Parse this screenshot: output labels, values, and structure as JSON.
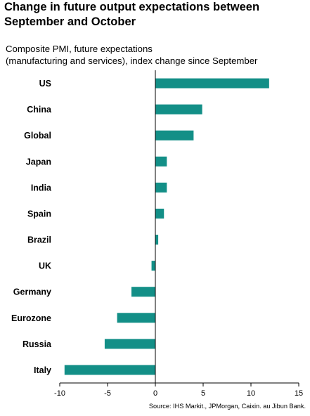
{
  "chart_data": {
    "type": "bar",
    "orientation": "horizontal",
    "title": "Change in future output expectations between September and October",
    "subtitle": [
      "Composite PMI, future expectations",
      "(manufacturing and services), index change since September"
    ],
    "source": "Source: IHS Markit., JPMorgan, Caixin. au Jibun Bank.",
    "categories": [
      "US",
      "China",
      "Global",
      "Japan",
      "India",
      "Spain",
      "Brazil",
      "UK",
      "Germany",
      "Eurozone",
      "Russia",
      "Italy"
    ],
    "values": [
      11.9,
      4.9,
      4.0,
      1.2,
      1.2,
      0.9,
      0.3,
      -0.4,
      -2.5,
      -4.0,
      -5.3,
      -9.5
    ],
    "xlim": [
      -10,
      15
    ],
    "xticks": [
      -10,
      -5,
      0,
      5,
      10,
      15
    ],
    "bar_color": "#138f87",
    "grid": false
  }
}
